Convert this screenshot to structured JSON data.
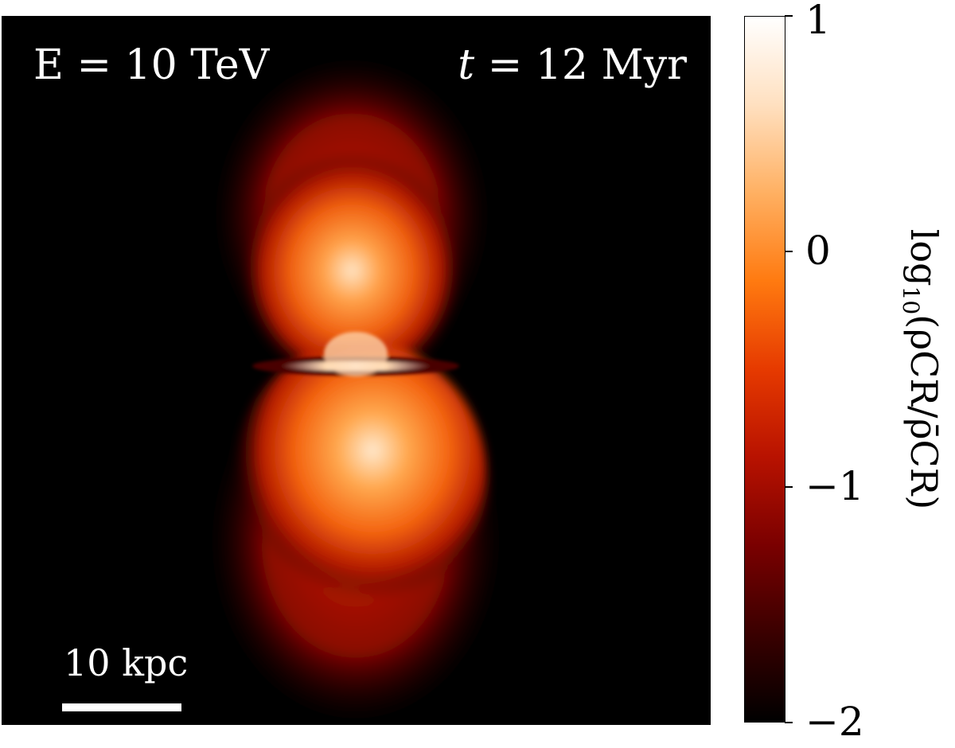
{
  "chart_data": {
    "type": "heatmap",
    "annotations": {
      "energy": "E = 10 TeV",
      "time_var": "t",
      "time_value": " = 12 Myr",
      "scale_bar": "10 kpc"
    },
    "colorbar": {
      "label_main": "log",
      "label_sub": "10",
      "label_rest": "(ρCR/ρ̄CR)",
      "range": [
        -2,
        1
      ],
      "ticks": [
        {
          "value": 1,
          "label": "1"
        },
        {
          "value": 0,
          "label": "0"
        },
        {
          "value": -1,
          "label": "−1"
        },
        {
          "value": -2,
          "label": "−2"
        }
      ],
      "colors": [
        "#000000",
        "#3a0000",
        "#7a0000",
        "#b81200",
        "#e63a00",
        "#ff7a10",
        "#ffb062",
        "#ffe0c0",
        "#ffffff"
      ]
    },
    "background": "#000000"
  }
}
